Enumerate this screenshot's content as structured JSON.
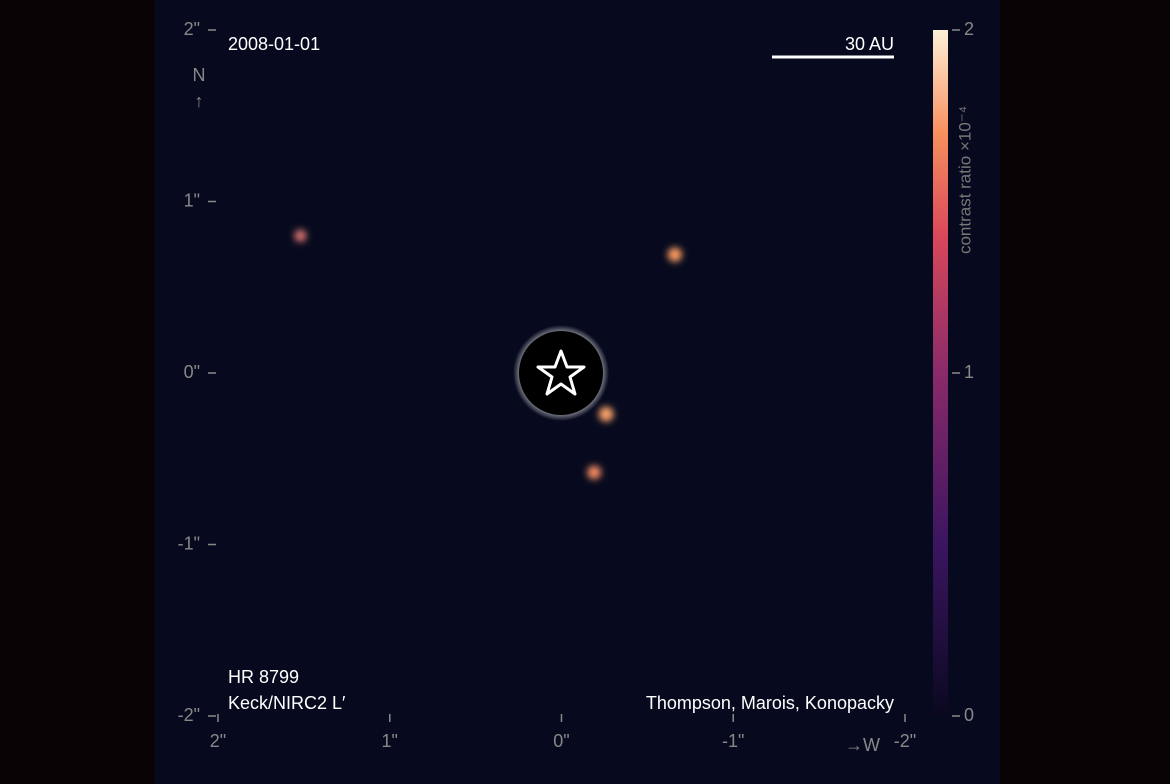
{
  "chart_data": {
    "type": "image",
    "title": "2008-01-01",
    "scale_bar_label": "30 AU",
    "north_label": "N",
    "north_arrow": "↑",
    "west_label": "→W",
    "target": "HR 8799",
    "instrument": "Keck/NIRC2 L′",
    "credit": "Thompson, Marois, Konopacky",
    "xlim": [
      2,
      -2
    ],
    "ylim": [
      -2,
      2
    ],
    "xticks": [
      {
        "value": 2,
        "label": "2\""
      },
      {
        "value": 1,
        "label": "1\""
      },
      {
        "value": 0,
        "label": "0\""
      },
      {
        "value": -1,
        "label": "-1\""
      },
      {
        "value": -2,
        "label": "-2\""
      }
    ],
    "yticks": [
      {
        "value": 2,
        "label": "2\""
      },
      {
        "value": 1,
        "label": "1\""
      },
      {
        "value": 0,
        "label": "0\""
      },
      {
        "value": -1,
        "label": "-1\""
      },
      {
        "value": -2,
        "label": "-2\""
      }
    ],
    "colorbar": {
      "label": "contrast ratio ×10⁻⁴",
      "lim": [
        0,
        2
      ],
      "ticks": [
        0,
        1,
        2
      ]
    },
    "points": {
      "x": [
        1.52,
        -0.66,
        -0.26,
        -0.19
      ],
      "y": [
        0.8,
        0.69,
        -0.24,
        -0.58
      ],
      "values": [
        0.9,
        1.3,
        1.4,
        1.2
      ],
      "colors": [
        "#d0706a",
        "#f59a5e",
        "#f5a06a",
        "#f08a60"
      ]
    }
  }
}
